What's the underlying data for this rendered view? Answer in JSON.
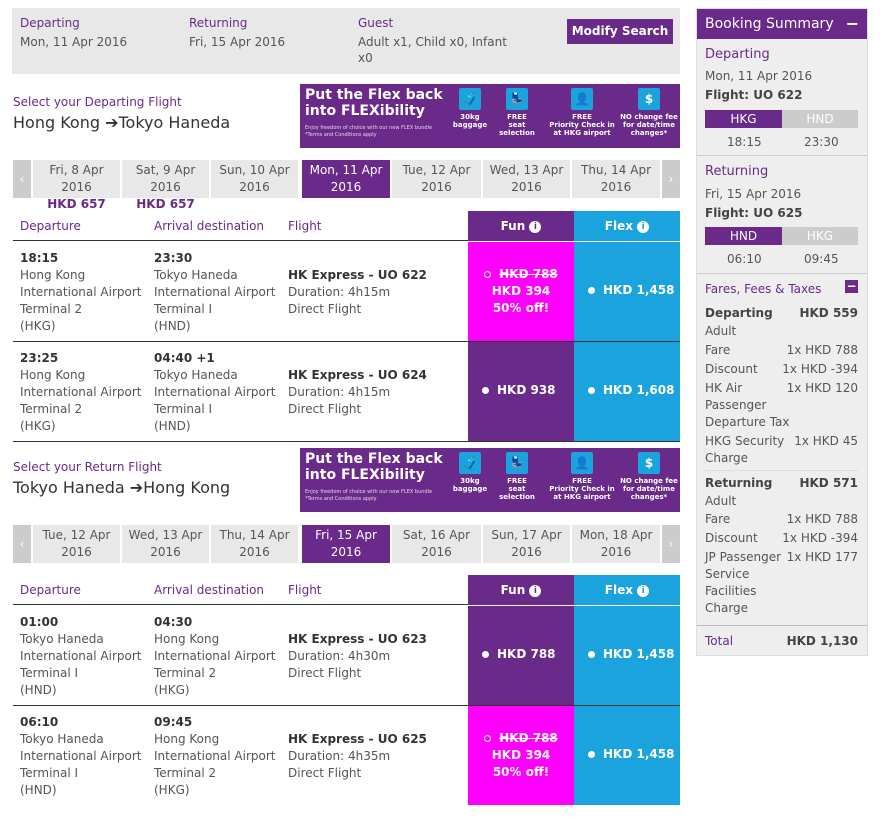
{
  "search": {
    "departing_label": "Departing",
    "departing_value": "Mon, 11 Apr 2016",
    "returning_label": "Returning",
    "returning_value": "Fri, 15 Apr 2016",
    "guest_label": "Guest",
    "guest_value_1": "Adult x1, Child x0, Infant",
    "guest_value_2": "x0",
    "modify_label": "Modify Search"
  },
  "banner": {
    "headline_1": "Put the Flex back",
    "headline_2": "into FLEXibility",
    "small_1": "Enjoy freedom of choice with our new FLEX bundle",
    "small_2": "*Terms and Conditions apply",
    "items": [
      {
        "l1": "30kg",
        "l2": "baggage",
        "l3": ""
      },
      {
        "l1": "FREE",
        "l2": "seat selection",
        "l3": ""
      },
      {
        "l1": "FREE",
        "l2": "Priority Check in",
        "l3": "at HKG airport"
      },
      {
        "l1": "NO change fee",
        "l2": "for date/time",
        "l3": "changes*"
      }
    ]
  },
  "outbound": {
    "title": "Select your Departing Flight",
    "from": "Hong Kong",
    "to": "Tokyo Haneda",
    "dates": [
      {
        "d": "Fri, 8 Apr 2016",
        "p": "HKD 657"
      },
      {
        "d": "Sat, 9 Apr 2016",
        "p": "HKD 657"
      },
      {
        "d": "Sun, 10 Apr",
        "p": "2016"
      },
      {
        "d": "Mon, 11 Apr",
        "p": "2016"
      },
      {
        "d": "Tue, 12 Apr",
        "p": "2016"
      },
      {
        "d": "Wed, 13 Apr",
        "p": "2016"
      },
      {
        "d": "Thu, 14 Apr",
        "p": "2016"
      }
    ],
    "flights": [
      {
        "dep_time": "18:15",
        "dep1": "Hong Kong",
        "dep2": "International Airport",
        "dep3": "Terminal 2",
        "dep4": "(HKG)",
        "arr_time": "23:30",
        "arr1": "Tokyo Haneda",
        "arr2": "International Airport",
        "arr3": "Terminal I",
        "arr4": "(HND)",
        "flight": "HK Express - UO 622",
        "duration": "Duration: 4h15m",
        "type": "Direct Flight",
        "fun_old": "HKD 788",
        "fun_price": "HKD 394",
        "fun_off": "50% off!",
        "flex_price": "HKD 1,458"
      },
      {
        "dep_time": "23:25",
        "dep1": "Hong Kong",
        "dep2": "International Airport",
        "dep3": "Terminal 2",
        "dep4": "(HKG)",
        "arr_time": "04:40 +1",
        "arr1": "Tokyo Haneda",
        "arr2": "International Airport",
        "arr3": "Terminal I",
        "arr4": "(HND)",
        "flight": "HK Express - UO 624",
        "duration": "Duration: 4h15m",
        "type": "Direct Flight",
        "fun_price": "HKD 938",
        "flex_price": "HKD 1,608"
      }
    ]
  },
  "inbound": {
    "title": "Select your Return Flight",
    "from": "Tokyo Haneda",
    "to": "Hong Kong",
    "dates": [
      {
        "d": "Tue, 12 Apr",
        "p": "2016"
      },
      {
        "d": "Wed, 13 Apr",
        "p": "2016"
      },
      {
        "d": "Thu, 14 Apr",
        "p": "2016"
      },
      {
        "d": "Fri, 15 Apr",
        "p": "2016"
      },
      {
        "d": "Sat, 16 Apr",
        "p": "2016"
      },
      {
        "d": "Sun, 17 Apr",
        "p": "2016"
      },
      {
        "d": "Mon, 18 Apr",
        "p": "2016"
      }
    ],
    "flights": [
      {
        "dep_time": "01:00",
        "dep1": "Tokyo Haneda",
        "dep2": "International Airport",
        "dep3": "Terminal I",
        "dep4": "(HND)",
        "arr_time": "04:30",
        "arr1": "Hong Kong",
        "arr2": "International Airport",
        "arr3": "Terminal 2",
        "arr4": "(HKG)",
        "flight": "HK Express - UO 623",
        "duration": "Duration: 4h30m",
        "type": "Direct Flight",
        "fun_price": "HKD 788",
        "flex_price": "HKD 1,458"
      },
      {
        "dep_time": "06:10",
        "dep1": "Tokyo Haneda",
        "dep2": "International Airport",
        "dep3": "Terminal I",
        "dep4": "(HND)",
        "arr_time": "09:45",
        "arr1": "Hong Kong",
        "arr2": "International Airport",
        "arr3": "Terminal 2",
        "arr4": "(HKG)",
        "flight": "HK Express - UO 625",
        "duration": "Duration: 4h35m",
        "type": "Direct Flight",
        "fun_old": "HKD 788",
        "fun_price": "HKD 394",
        "fun_off": "50% off!",
        "flex_price": "HKD 1,458"
      }
    ]
  },
  "table_headers": {
    "departure": "Departure",
    "arrival": "Arrival destination",
    "flight": "Flight",
    "fun": "Fun",
    "flex": "Flex"
  },
  "summary": {
    "title": "Booking Summary",
    "toggle": "−",
    "departing_label": "Departing",
    "departing_date": "Mon, 11 Apr 2016",
    "departing_flight": "Flight: UO 622",
    "dep_from": "HKG",
    "dep_to": "HND",
    "dep_time1": "18:15",
    "dep_time2": "23:30",
    "returning_label": "Returning",
    "returning_date": "Fri, 15 Apr 2016",
    "returning_flight": "Flight: UO 625",
    "ret_from": "HND",
    "ret_to": "HKG",
    "ret_time1": "06:10",
    "ret_time2": "09:45",
    "fees_label": "Fares, Fees & Taxes",
    "fees_toggle": "−",
    "fd_label": "Departing",
    "fd_total": "HKD 559",
    "fd_pax": "Adult",
    "fd_fare_l": "Fare",
    "fd_fare_v": "1x HKD 788",
    "fd_disc_l": "Discount",
    "fd_disc_v": "1x HKD -394",
    "fd_air_l1": "HK Air",
    "fd_air_l2": "Passenger",
    "fd_air_l3": "Departure Tax",
    "fd_air_v": "1x HKD 120",
    "fd_sec_l1": "HKG Security",
    "fd_sec_l2": "Charge",
    "fd_sec_v": "1x HKD 45",
    "fr_label": "Returning",
    "fr_total": "HKD 571",
    "fr_pax": "Adult",
    "fr_fare_l": "Fare",
    "fr_fare_v": "1x HKD 788",
    "fr_disc_l": "Discount",
    "fr_disc_v": "1x HKD -394",
    "fr_jp_l1": "JP Passenger",
    "fr_jp_l2": "Service",
    "fr_jp_l3": "Facilities",
    "fr_jp_l4": "Charge",
    "fr_jp_v": "1x HKD 177",
    "total_label": "Total",
    "total_value": "HKD 1,130"
  },
  "colors": {
    "brand": "#6a2a8a",
    "flex": "#1ba3dd",
    "promo": "#ff00ff"
  }
}
